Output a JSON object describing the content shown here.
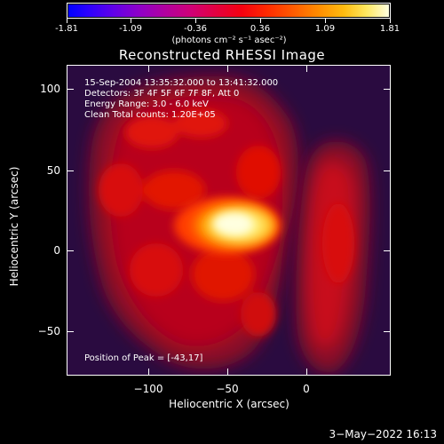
{
  "colorbar": {
    "tick_labels": [
      "-1.81",
      "-1.09",
      "-0.36",
      "0.36",
      "1.09",
      "1.81"
    ],
    "units": "(photons cm⁻² s⁻¹ asec⁻²)",
    "range": [
      -1.81,
      1.81
    ]
  },
  "plot": {
    "title": "Reconstructed RHESSI Image",
    "info_lines": [
      "15-Sep-2004 13:35:32.000 to 13:41:32.000",
      "Detectors: 3F 4F 5F 6F 7F 8F, Att 0",
      "Energy Range: 3.0 - 6.0 keV",
      "Clean     Total counts: 1.20E+05"
    ],
    "peak_text": "Position of Peak = [-43,17]",
    "x_axis": {
      "label": "Heliocentric X (arcsec)",
      "range": [
        -145,
        42
      ],
      "major_ticks": [
        -100,
        -50,
        0
      ],
      "tick_labels": [
        "−100",
        "−50",
        "0"
      ]
    },
    "y_axis": {
      "label": "Heliocentric Y (arcsec)",
      "range": [
        -77,
        120
      ],
      "major_ticks": [
        100,
        50,
        0,
        -50
      ],
      "tick_labels": [
        "100",
        "50",
        "0",
        "−50"
      ]
    },
    "colors": {
      "background_dark": "#2a0b40",
      "emission_low": "#b3001c",
      "emission_mid": "#e21400",
      "peak_core": "#ffffd0"
    }
  },
  "footer": {
    "timestamp": "3−May−2022 16:13"
  }
}
